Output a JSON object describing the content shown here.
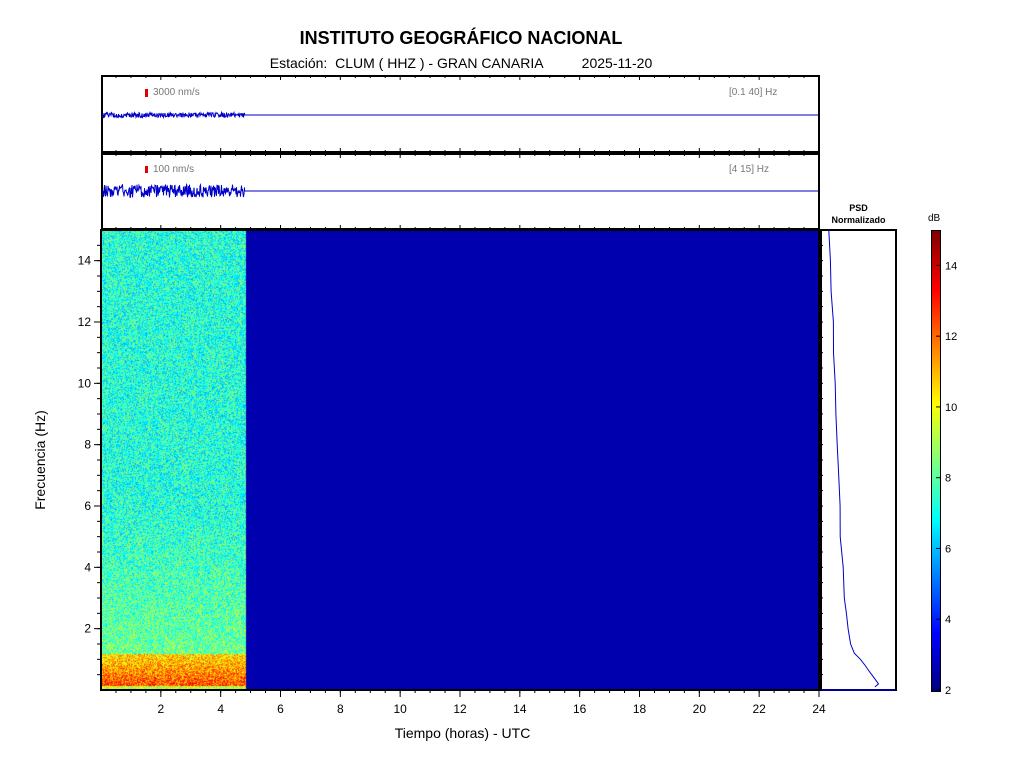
{
  "header": {
    "title": "INSTITUTO GEOGRÁFICO NACIONAL",
    "subtitle": "Estación:  CLUM ( HHZ ) - GRAN CANARIA          2025-11-20"
  },
  "traces": [
    {
      "amplitude_label": "3000 nm/s",
      "band_label": "[0.1 40] Hz"
    },
    {
      "amplitude_label": "100 nm/s",
      "band_label": "[4 15] Hz"
    }
  ],
  "psd_panel": {
    "title_line1": "PSD",
    "title_line2": "Normalizado"
  },
  "colors": {
    "trace": "#0000c8",
    "scale_bar": "#e00000",
    "background_dark": "#0a0a8c"
  },
  "chart_data": {
    "type": "heatmap",
    "xlabel": "Tiempo (horas) - UTC",
    "ylabel": "Frecuencia  (Hz)",
    "xlim": [
      0,
      24
    ],
    "ylim": [
      0,
      15
    ],
    "x_ticks": [
      2,
      4,
      6,
      8,
      10,
      12,
      14,
      16,
      18,
      20,
      22,
      24
    ],
    "y_ticks": [
      2,
      4,
      6,
      8,
      10,
      12,
      14
    ],
    "data_end_hour": 4.8,
    "colorbar": {
      "label": "dB",
      "range": [
        2,
        15
      ],
      "ticks": [
        2,
        4,
        6,
        8,
        10,
        12,
        14
      ],
      "colormap": "jet"
    },
    "psd_profile": {
      "frequency_hz": [
        15,
        14,
        13,
        12,
        11,
        10,
        9,
        8,
        7,
        6,
        5,
        4,
        3,
        2.5,
        2,
        1.5,
        1.2,
        1.0,
        0.8,
        0.6,
        0.4,
        0.2,
        0.1
      ],
      "normalized_level": [
        0.02,
        0.04,
        0.06,
        0.08,
        0.1,
        0.12,
        0.13,
        0.15,
        0.17,
        0.19,
        0.21,
        0.24,
        0.27,
        0.29,
        0.33,
        0.38,
        0.44,
        0.52,
        0.6,
        0.68,
        0.76,
        0.82,
        0.76
      ]
    }
  }
}
